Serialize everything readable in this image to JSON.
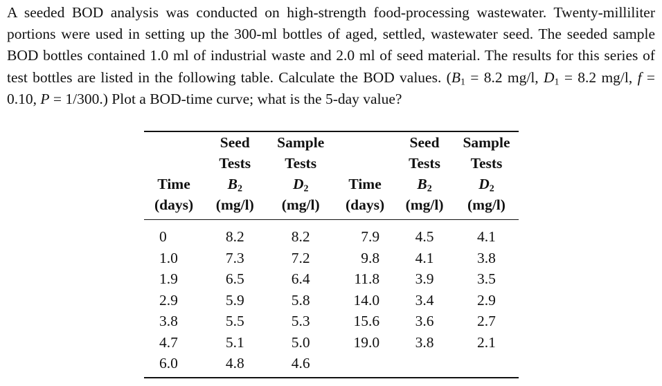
{
  "problem": {
    "intro": "A seeded BOD analysis was conducted on high-strength food-processing wastewater. Twenty-milliliter portions were used in setting up the 300-ml bottles of aged, settled, wastewater seed. The seeded sample BOD bottles contained 1.0 ml of industrial waste and 2.0 ml of seed material. The results for this series of test bottles are listed in the following table. Calculate the BOD values. (",
    "b1_sym": "B",
    "b1_sub": "1",
    "b1_val": " = 8.2 mg/l, ",
    "d1_sym": "D",
    "d1_sub": "1",
    "d1_val": " = 8.2 mg/l, ",
    "f_sym": "f",
    "f_val": " = 0.10, ",
    "p_sym": "P",
    "p_val": " = 1/300.) Plot a BOD-time curve; what is the 5-day value?"
  },
  "table": {
    "headers": {
      "time_l1": "Time",
      "time_l2": "(days)",
      "seed_l1": "Seed",
      "seed_l2": "Tests",
      "seed_sym": "B",
      "seed_sub": "2",
      "seed_unit": "(mg/l)",
      "sample_l1": "Sample",
      "sample_l2": "Tests",
      "sample_sym": "D",
      "sample_sub": "2",
      "sample_unit": "(mg/l)"
    },
    "rows": [
      [
        "0",
        "8.2",
        "8.2",
        "7.9",
        "4.5",
        "4.1"
      ],
      [
        "1.0",
        "7.3",
        "7.2",
        "9.8",
        "4.1",
        "3.8"
      ],
      [
        "1.9",
        "6.5",
        "6.4",
        "11.8",
        "3.9",
        "3.5"
      ],
      [
        "2.9",
        "5.9",
        "5.8",
        "14.0",
        "3.4",
        "2.9"
      ],
      [
        "3.8",
        "5.5",
        "5.3",
        "15.6",
        "3.6",
        "2.7"
      ],
      [
        "4.7",
        "5.1",
        "5.0",
        "19.0",
        "3.8",
        "2.1"
      ],
      [
        "6.0",
        "4.8",
        "4.6",
        "",
        "",
        ""
      ]
    ]
  }
}
